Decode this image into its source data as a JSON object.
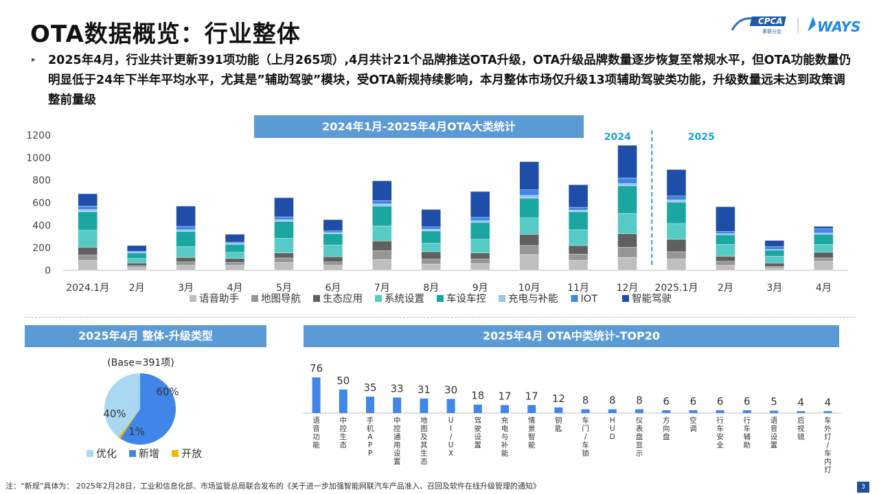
{
  "page": {
    "title": "OTA数据概览：行业整体",
    "intro": "2025年4月，行业共计更新391项功能（上月265项）,4月共计21个品牌推送OTA升级，OTA升级品牌数量逐步恢复至常规水平，但OTA功能数量仍明显低于24年下半年平均水平，尤其是”辅助驾驶”模块，受OTA新规持续影响，本月整体市场仅升级13项辅助驾驶类功能，升级数量远未达到政策调整前量级",
    "footnote": "注：“新规”具体为： 2025年2月28日，工业和信息化部、市场监管总局联合发布的《关于进一步加强智能网联汽车产品准入、召回及软件在线升级管理的通知》",
    "page_number": "3",
    "logo_cpca": "CPCA",
    "logo_cpca_sub": "乘联分会",
    "logo_ways": "WAYS"
  },
  "chart_data": [
    {
      "type": "bar",
      "stacked": true,
      "title": "2024年1月-2025年4月OTA大类统计",
      "categories": [
        "2024.1月",
        "2月",
        "3月",
        "4月",
        "5月",
        "6月",
        "7月",
        "8月",
        "9月",
        "10月",
        "11月",
        "12月",
        "2025.1月",
        "2月",
        "3月",
        "4月"
      ],
      "ylim": [
        0,
        1200
      ],
      "yticks": [
        0,
        200,
        400,
        600,
        800,
        1000,
        1200
      ],
      "year_markers": [
        "2024",
        "2025"
      ],
      "legend_position": "bottom",
      "series": [
        {
          "name": "语音助手",
          "color": "#bfbfbf",
          "values": [
            90,
            25,
            45,
            45,
            70,
            45,
            95,
            55,
            60,
            140,
            90,
            115,
            100,
            45,
            20,
            80
          ]
        },
        {
          "name": "地图导航",
          "color": "#969696",
          "values": [
            45,
            15,
            30,
            25,
            40,
            30,
            80,
            45,
            40,
            80,
            55,
            90,
            65,
            35,
            15,
            30
          ]
        },
        {
          "name": "生态应用",
          "color": "#606060",
          "values": [
            70,
            25,
            40,
            35,
            45,
            45,
            85,
            65,
            55,
            100,
            75,
            120,
            110,
            45,
            30,
            50
          ]
        },
        {
          "name": "系统设置",
          "color": "#56cbc6",
          "values": [
            150,
            40,
            95,
            55,
            130,
            105,
            135,
            75,
            120,
            145,
            140,
            180,
            140,
            105,
            60,
            70
          ]
        },
        {
          "name": "车设车控",
          "color": "#1aa7a1",
          "values": [
            165,
            50,
            135,
            70,
            150,
            100,
            175,
            110,
            150,
            175,
            160,
            245,
            190,
            85,
            55,
            90
          ]
        },
        {
          "name": "充电与补能",
          "color": "#9dc3e6",
          "values": [
            20,
            5,
            15,
            10,
            15,
            10,
            20,
            15,
            15,
            25,
            15,
            20,
            20,
            10,
            5,
            10
          ]
        },
        {
          "name": "IOT",
          "color": "#3f86e8",
          "values": [
            30,
            10,
            30,
            10,
            25,
            15,
            30,
            20,
            30,
            50,
            25,
            50,
            35,
            20,
            25,
            40
          ]
        },
        {
          "name": "智能驾驶",
          "color": "#1f4ea8",
          "values": [
            110,
            50,
            180,
            70,
            170,
            100,
            175,
            155,
            230,
            250,
            200,
            290,
            235,
            220,
            55,
            20
          ]
        }
      ]
    },
    {
      "type": "pie",
      "title": "2025年4月 整体-升级类型",
      "subtitle": "(Base=391项)",
      "legend_position": "bottom",
      "slices": [
        {
          "name": "优化",
          "value": 40,
          "label": "40%",
          "color": "#a9d8f2"
        },
        {
          "name": "新增",
          "value": 60,
          "label": "60%",
          "color": "#3f86e8"
        },
        {
          "name": "开放",
          "value": 1,
          "label": "1%",
          "color": "#f2b800"
        }
      ]
    },
    {
      "type": "bar",
      "title": "2025年4月 OTA中类统计-TOP20",
      "categories": [
        "语音功能",
        "中控生态",
        "手机APP",
        "中控通用设置",
        "地图及其生态",
        "UI/UX",
        "驾驶设置",
        "充电与补能",
        "情景智能",
        "钥匙",
        "车门/车锁",
        "HUD",
        "仪表盘显示",
        "方向盘",
        "空调",
        "行车安全",
        "行车辅助",
        "语音设置",
        "后视镜",
        "车外灯/车内灯"
      ],
      "values": [
        76,
        50,
        35,
        33,
        31,
        30,
        18,
        17,
        17,
        12,
        8,
        8,
        8,
        6,
        6,
        6,
        6,
        5,
        4,
        4
      ],
      "color": "#3f86e8"
    }
  ]
}
